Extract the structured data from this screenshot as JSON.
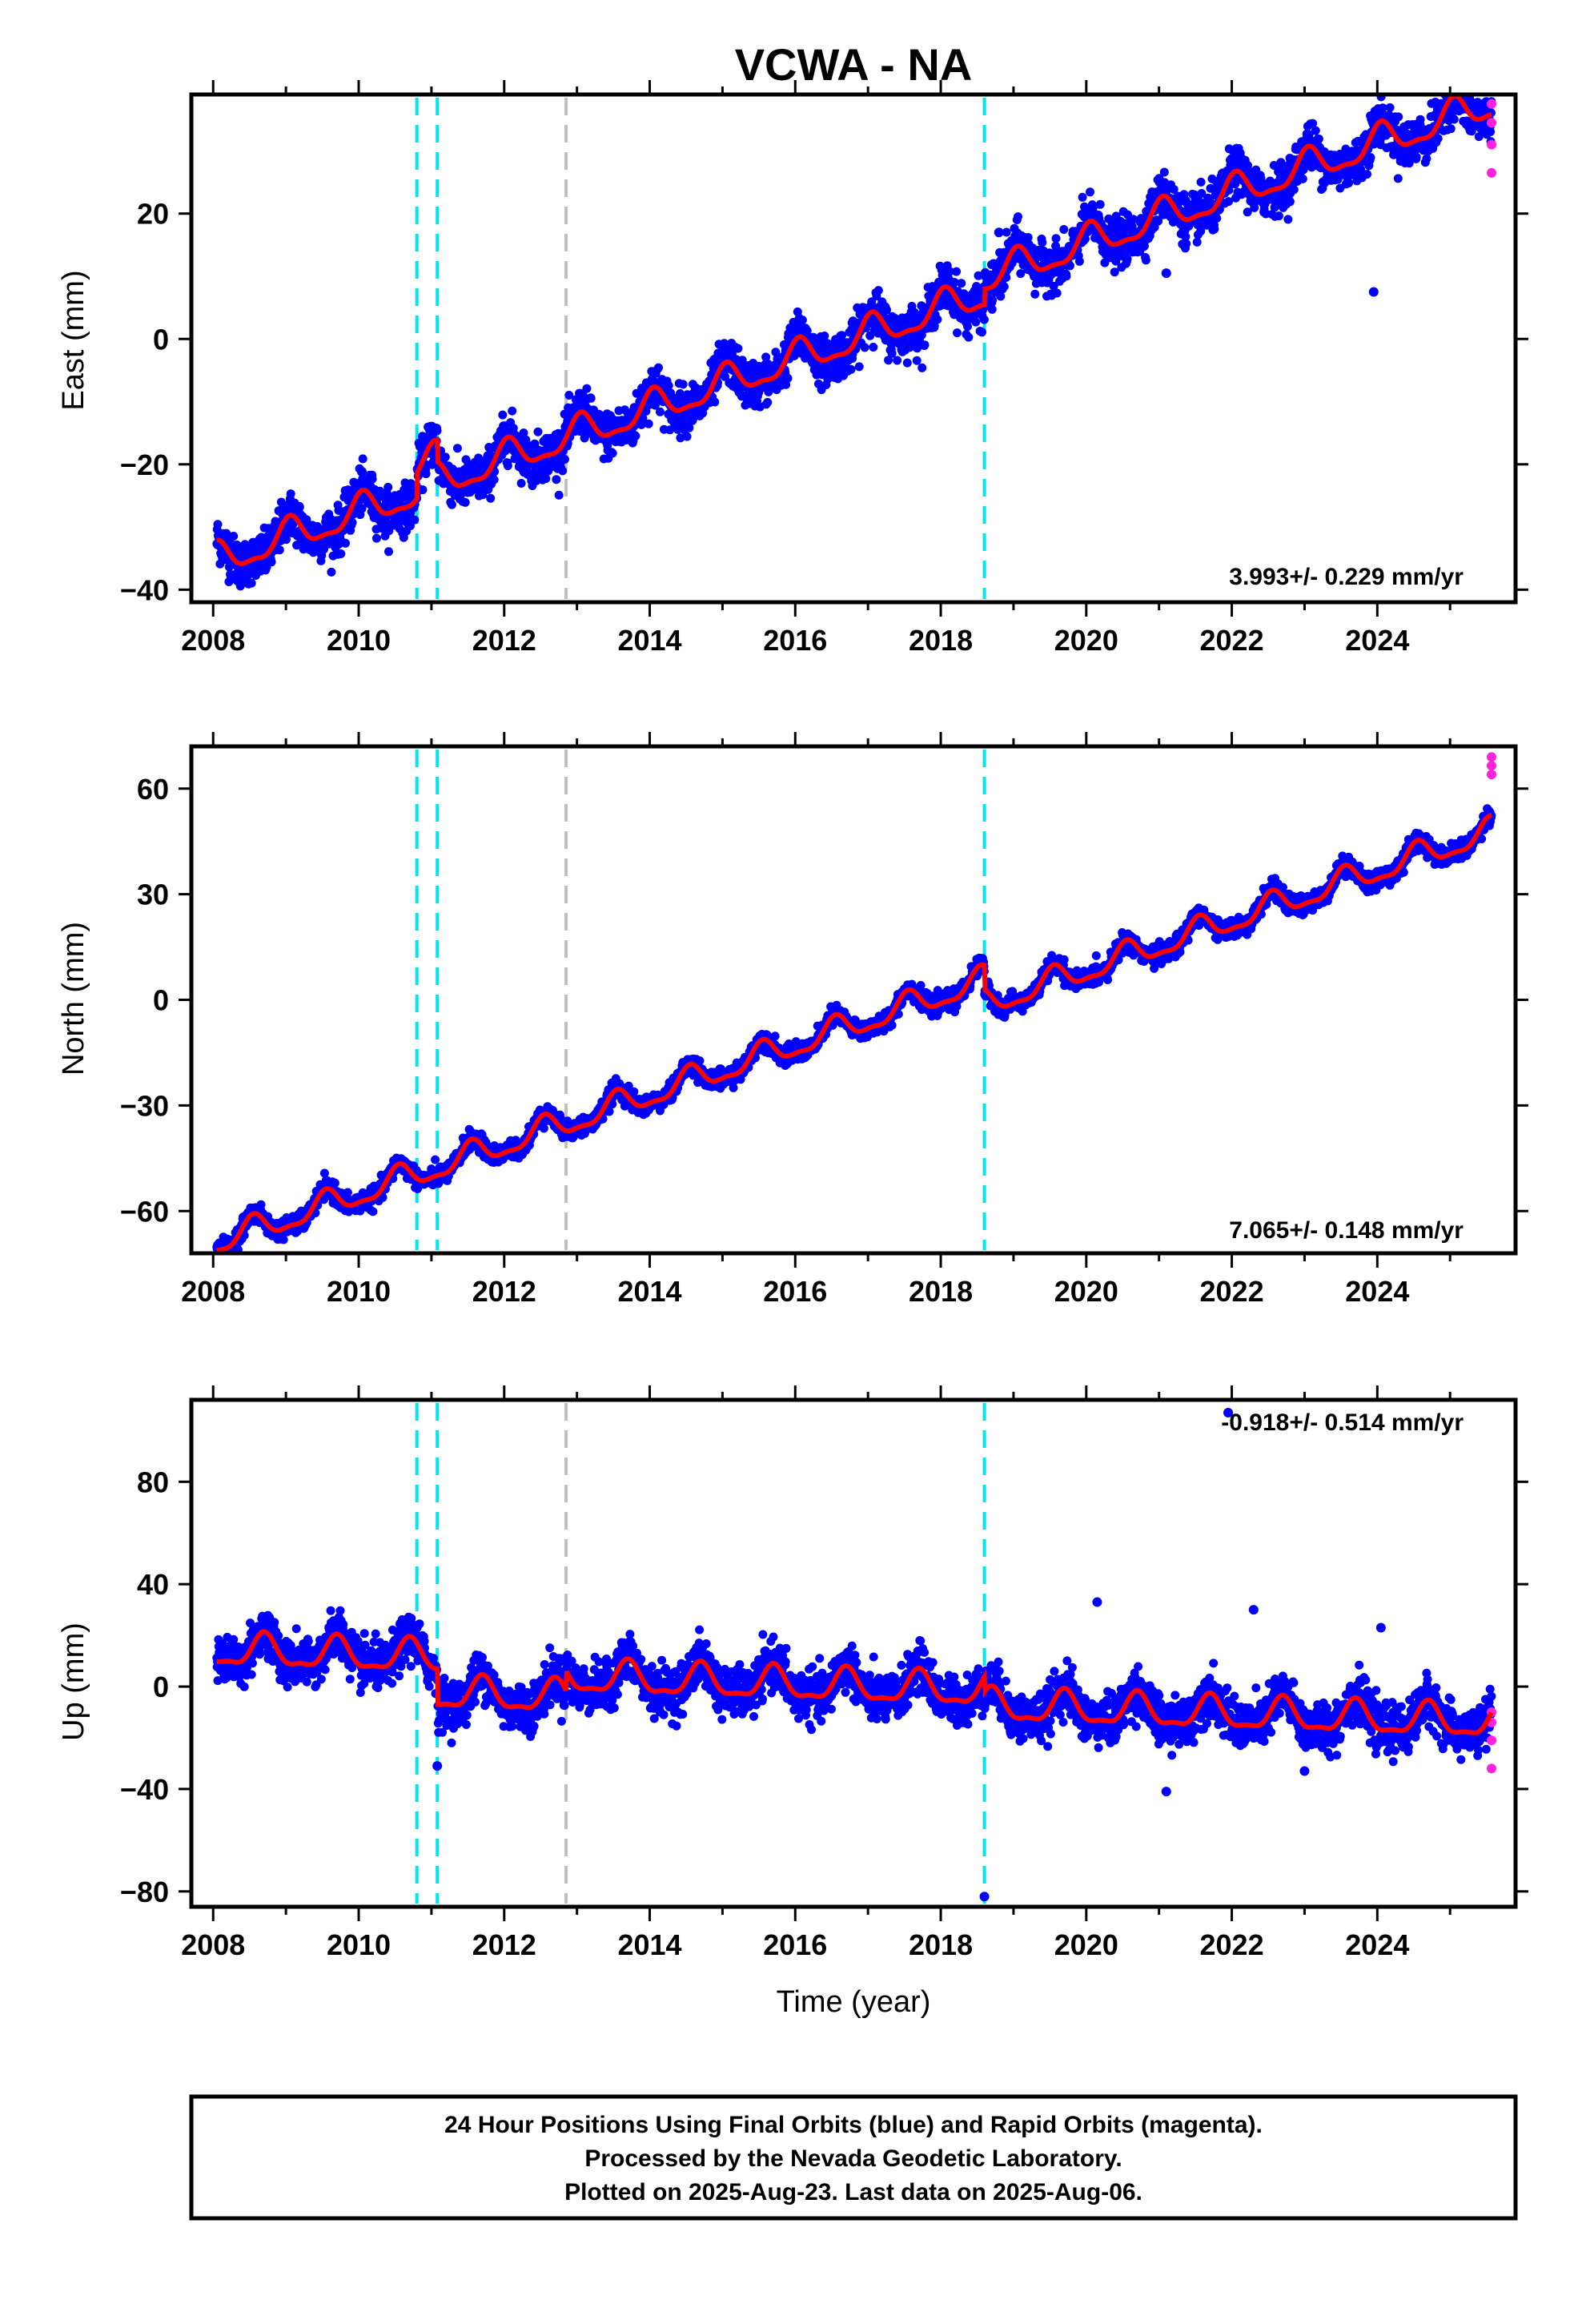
{
  "title": "VCWA - NA",
  "xlabel": "Time (year)",
  "colors": {
    "final_orbits": "#0000ff",
    "rapid_orbits": "#ff22dd",
    "model": "#ff0000",
    "equipment_change": "#00e5ee",
    "other_event": "#c0c0c0"
  },
  "footer": {
    "line1": "24 Hour Positions Using Final Orbits (blue) and Rapid Orbits (magenta).",
    "line2": "Processed by the Nevada Geodetic Laboratory.",
    "line3": "Plotted on 2025-Aug-23. Last data on 2025-Aug-06."
  },
  "chart_data": [
    {
      "type": "scatter",
      "component": "east",
      "ylabel": "East (mm)",
      "rate_text": "3.993+/- 0.229 mm/yr",
      "xlim": [
        2007.7,
        2025.9
      ],
      "ylim": [
        -42,
        39
      ],
      "xticks": [
        2008,
        2010,
        2012,
        2014,
        2016,
        2018,
        2020,
        2022,
        2024
      ],
      "xtick_labels": [
        "2008",
        "2010",
        "2012",
        "2014",
        "2016",
        "2018",
        "2020",
        "2022",
        "2024"
      ],
      "yticks": [
        -40,
        -20,
        0,
        20
      ],
      "ytick_labels": [
        "−40",
        "−20",
        "0",
        "20"
      ],
      "start_value": -35.5,
      "rate_mm_per_yr": 3.993,
      "annual_amplitude": 2.5,
      "annual_phase_peak": 0.05,
      "noise": 1.8,
      "events": [
        {
          "year": 2010.8,
          "kind": "equipment_change"
        },
        {
          "year": 2011.08,
          "kind": "equipment_change"
        },
        {
          "year": 2012.85,
          "kind": "other_event"
        },
        {
          "year": 2018.6,
          "kind": "equipment_change"
        }
      ],
      "offsets": [
        {
          "year": 2010.8,
          "value": 4.0
        },
        {
          "year": 2011.08,
          "value": -3.5
        },
        {
          "year": 2018.6,
          "value": 2.5
        }
      ],
      "outliers": [
        {
          "x": 2010.98,
          "y": -14.5
        },
        {
          "x": 2018.8,
          "y": 17
        },
        {
          "x": 2021.1,
          "y": 10.5
        },
        {
          "x": 2023.95,
          "y": 7.5
        }
      ],
      "rapid_points": [
        {
          "x": 2025.57,
          "y": 37.5
        },
        {
          "x": 2025.57,
          "y": 34.5
        },
        {
          "x": 2025.57,
          "y": 31
        },
        {
          "x": 2025.57,
          "y": 26.5
        }
      ]
    },
    {
      "type": "scatter",
      "component": "north",
      "ylabel": "North (mm)",
      "rate_text": "7.065+/- 0.148 mm/yr",
      "xlim": [
        2007.7,
        2025.9
      ],
      "ylim": [
        -72,
        72
      ],
      "xticks": [
        2008,
        2010,
        2012,
        2014,
        2016,
        2018,
        2020,
        2022,
        2024
      ],
      "xtick_labels": [
        "2008",
        "2010",
        "2012",
        "2014",
        "2016",
        "2018",
        "2020",
        "2022",
        "2024"
      ],
      "yticks": [
        -60,
        -30,
        0,
        30,
        60
      ],
      "ytick_labels": [
        "−60",
        "−30",
        "0",
        "30",
        "60"
      ],
      "start_value": -69,
      "rate_mm_per_yr": 7.065,
      "annual_amplitude": 3.5,
      "annual_phase_peak": 0.55,
      "noise": 1.3,
      "events": [
        {
          "year": 2010.8,
          "kind": "equipment_change"
        },
        {
          "year": 2011.08,
          "kind": "equipment_change"
        },
        {
          "year": 2012.85,
          "kind": "other_event"
        },
        {
          "year": 2018.6,
          "kind": "equipment_change"
        }
      ],
      "offsets": [
        {
          "year": 2018.6,
          "value": -7
        }
      ],
      "outliers": [],
      "rapid_points": [
        {
          "x": 2025.57,
          "y": 69
        },
        {
          "x": 2025.57,
          "y": 66.5
        },
        {
          "x": 2025.57,
          "y": 64
        }
      ]
    },
    {
      "type": "scatter",
      "component": "up",
      "ylabel": "Up (mm)",
      "rate_text": "-0.918+/- 0.514 mm/yr",
      "xlim": [
        2007.7,
        2025.9
      ],
      "ylim": [
        -86,
        112
      ],
      "xticks": [
        2008,
        2010,
        2012,
        2014,
        2016,
        2018,
        2020,
        2022,
        2024
      ],
      "xtick_labels": [
        "2008",
        "2010",
        "2012",
        "2014",
        "2016",
        "2018",
        "2020",
        "2022",
        "2024"
      ],
      "yticks": [
        -80,
        -40,
        0,
        40,
        80
      ],
      "ytick_labels": [
        "−80",
        "−40",
        "0",
        "40",
        "80"
      ],
      "start_value": 14,
      "rate_mm_per_yr": -0.918,
      "annual_amplitude": 6,
      "annual_phase_peak": 0.7,
      "noise": 4.5,
      "events": [
        {
          "year": 2010.8,
          "kind": "equipment_change"
        },
        {
          "year": 2011.08,
          "kind": "equipment_change"
        },
        {
          "year": 2012.85,
          "kind": "other_event"
        },
        {
          "year": 2018.6,
          "kind": "equipment_change"
        }
      ],
      "offsets": [
        {
          "year": 2011.08,
          "value": -14
        },
        {
          "year": 2012.85,
          "value": 8
        },
        {
          "year": 2018.6,
          "value": -6
        }
      ],
      "outliers": [
        {
          "x": 2020.15,
          "y": 33
        },
        {
          "x": 2021.1,
          "y": -41
        },
        {
          "x": 2021.95,
          "y": 107
        },
        {
          "x": 2022.3,
          "y": 30
        },
        {
          "x": 2023.0,
          "y": -33
        },
        {
          "x": 2024.05,
          "y": 23
        },
        {
          "x": 2018.6,
          "y": -82
        },
        {
          "x": 2011.08,
          "y": -31
        }
      ],
      "rapid_points": [
        {
          "x": 2025.57,
          "y": -10
        },
        {
          "x": 2025.57,
          "y": -14
        },
        {
          "x": 2025.57,
          "y": -21
        },
        {
          "x": 2025.57,
          "y": -32
        }
      ]
    }
  ]
}
